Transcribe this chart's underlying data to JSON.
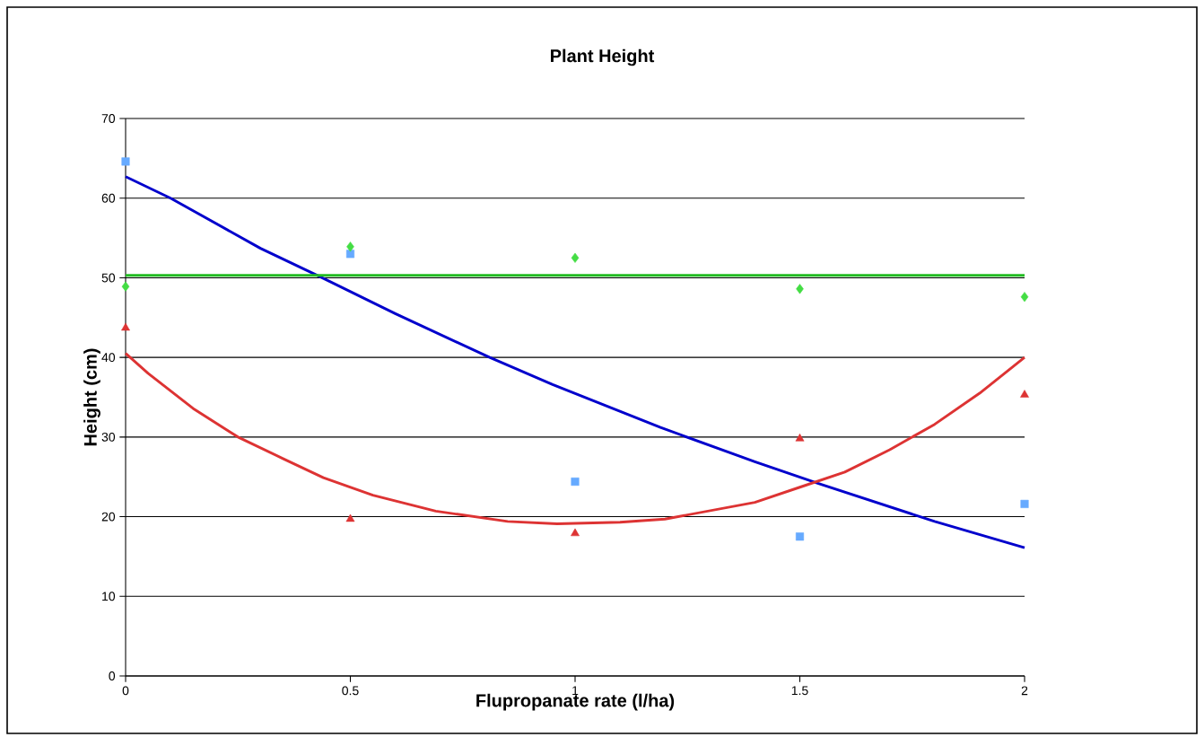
{
  "chart_data": {
    "type": "scatter",
    "title": "Plant Height",
    "xlabel": "Flupropanate rate (l/ha)",
    "ylabel": "Height (cm)",
    "xlim": [
      0,
      2
    ],
    "xticks": [
      0,
      0.5,
      1,
      1.5,
      2
    ],
    "ylim": [
      0,
      70
    ],
    "yticks": [
      0,
      10,
      20,
      30,
      40,
      50,
      60,
      70
    ],
    "grid": "y",
    "series": [
      {
        "marker": "square",
        "color": "#66aaff",
        "x": [
          0,
          0.5,
          1,
          1.5,
          2
        ],
        "values": [
          64.6,
          53.0,
          24.4,
          17.5,
          21.6
        ]
      },
      {
        "marker": "diamond",
        "color": "#44dd44",
        "x": [
          0,
          0.5,
          1,
          1.5,
          2
        ],
        "values": [
          48.9,
          53.9,
          52.5,
          48.6,
          47.6
        ]
      },
      {
        "marker": "triangle",
        "color": "#dd3333",
        "x": [
          0,
          0.5,
          1,
          1.5,
          2
        ],
        "values": [
          43.7,
          19.7,
          17.9,
          29.8,
          35.3
        ]
      },
      {
        "type": "line",
        "color": "#0000cc",
        "x": [
          0,
          0.1,
          0.3,
          0.43,
          0.6,
          0.81,
          0.95,
          1.19,
          1.4,
          1.54,
          1.8,
          2
        ],
        "values": [
          62.7,
          60.0,
          53.7,
          50.2,
          45.5,
          40.0,
          36.6,
          31.2,
          26.9,
          24.2,
          19.4,
          16.1
        ]
      },
      {
        "type": "line",
        "color": "#22bb22",
        "x": [
          0,
          2
        ],
        "values": [
          50.3,
          50.3
        ]
      },
      {
        "type": "line",
        "color": "#dd3333",
        "x": [
          0,
          0.05,
          0.15,
          0.25,
          0.35,
          0.44,
          0.55,
          0.69,
          0.85,
          0.96,
          1.1,
          1.2,
          1.4,
          1.5,
          1.6,
          1.7,
          1.8,
          1.9,
          2
        ],
        "values": [
          40.5,
          38.0,
          33.6,
          30.0,
          27.3,
          24.9,
          22.7,
          20.7,
          19.4,
          19.1,
          19.3,
          19.7,
          21.8,
          23.7,
          25.6,
          28.4,
          31.6,
          35.5,
          40.0
        ]
      }
    ]
  }
}
